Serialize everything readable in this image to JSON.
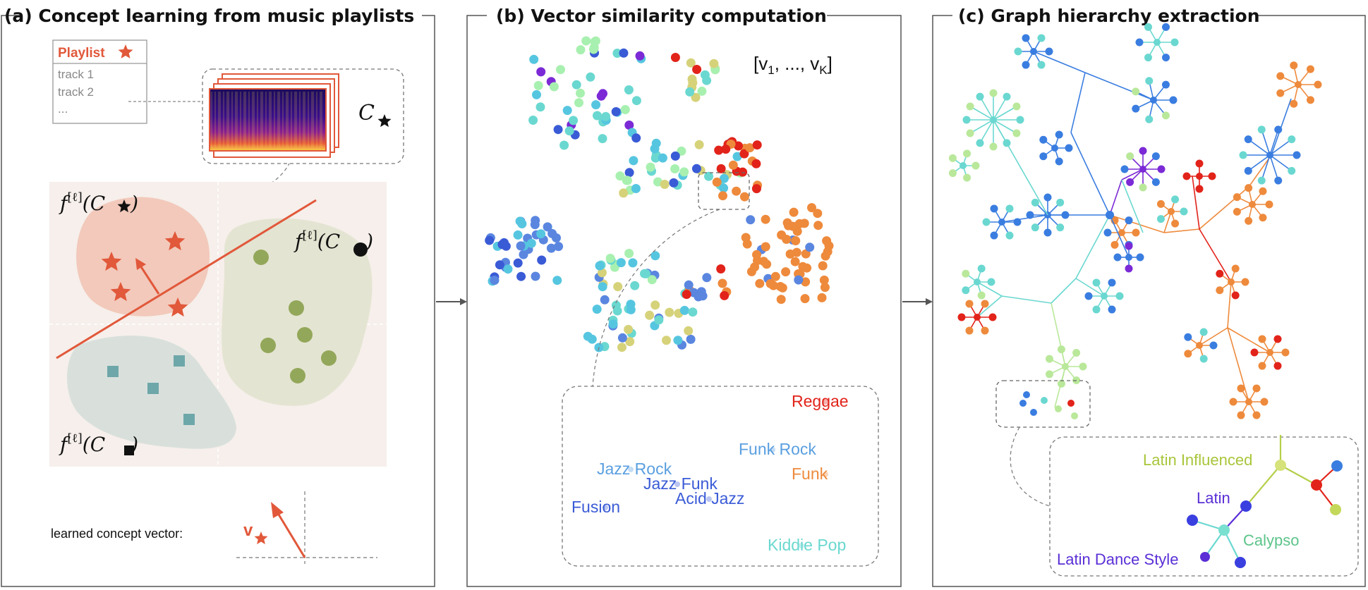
{
  "panels": {
    "a": {
      "title": "(a) Concept learning from music playlists",
      "playlist": {
        "header": "Playlist",
        "tracks": [
          "track 1",
          "track 2",
          "..."
        ]
      },
      "concept_symbol": "C",
      "labels": {
        "f_prefix": "f",
        "layer": "[ℓ]",
        "open": "(C",
        "close": ")"
      },
      "learned_vector_label": "learned concept vector:",
      "vector_symbol": "v"
    },
    "b": {
      "title": "(b) Vector similarity computation",
      "vector_notation": {
        "open": "[v",
        "sub1": "1",
        "mid": ", ..., v",
        "subK": "K",
        "close": "]"
      },
      "zoom_labels": [
        {
          "text": "Reggae",
          "color": "#e2231a"
        },
        {
          "text": "Funk Rock",
          "color": "#5a9fe0"
        },
        {
          "text": "Funk",
          "color": "#ee8a3c"
        },
        {
          "text": "Jazz Rock",
          "color": "#5a9fe0"
        },
        {
          "text": "Jazz Funk",
          "color": "#3a5bd6"
        },
        {
          "text": "Acid Jazz",
          "color": "#3a5bd6"
        },
        {
          "text": "Fusion",
          "color": "#3a5bd6"
        },
        {
          "text": "Kiddie Pop",
          "color": "#6ad8d0"
        }
      ]
    },
    "c": {
      "title": "(c) Graph hierarchy extraction",
      "zoom_labels": [
        {
          "text": "Latin Influenced",
          "color": "#a8c63a"
        },
        {
          "text": "Latin",
          "color": "#5a2fd6"
        },
        {
          "text": "Calypso",
          "color": "#5cc48a"
        },
        {
          "text": "Latin Dance Style",
          "color": "#5a2fd6"
        }
      ]
    }
  },
  "colors": {
    "accent_orange": "#e1583a",
    "star_region": "#f2c9bb",
    "circle_region": "#e4e4d2",
    "square_region": "#d9e0dc",
    "square_marker": "#6ea7a9",
    "circle_marker": "#93a75a",
    "frame": "#555555"
  }
}
